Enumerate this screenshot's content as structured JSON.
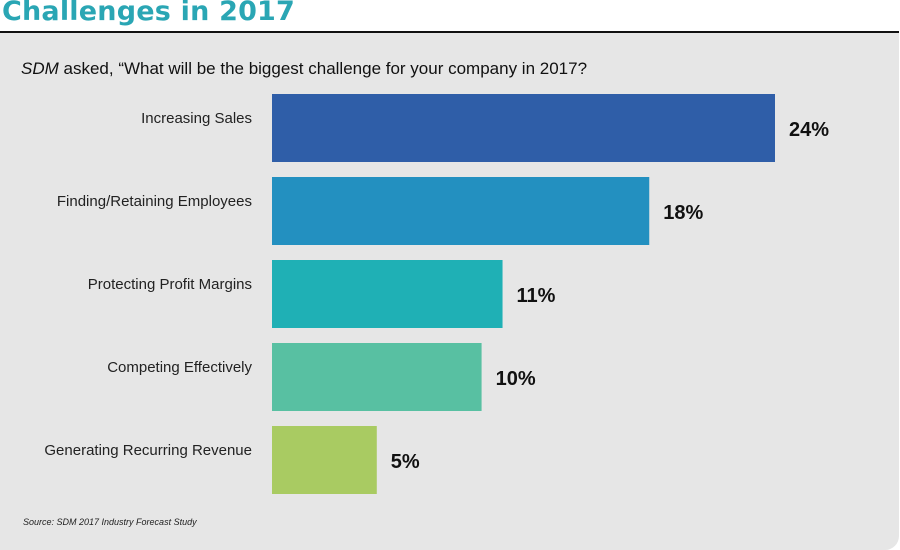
{
  "header": {
    "title": "Challenges in 2017"
  },
  "question": {
    "italic_part": "SDM",
    "rest": " asked, “What will be the biggest challenge for your company in 2017?"
  },
  "source": "Source: SDM 2017 Industry Forecast Study",
  "chart_data": {
    "type": "bar",
    "orientation": "horizontal",
    "categories": [
      "Increasing Sales",
      "Finding/Retaining Employees",
      "Protecting Profit Margins",
      "Competing Effectively",
      "Generating Recurring Revenue"
    ],
    "values": [
      24,
      18,
      11,
      10,
      5
    ],
    "value_labels": [
      "24%",
      "18%",
      "11%",
      "10%",
      "5%"
    ],
    "colors": [
      "#2f5ea8",
      "#2390c0",
      "#1fb0b5",
      "#58c0a2",
      "#a9cb62"
    ],
    "unit": "%",
    "grid": false,
    "legend": "none"
  }
}
